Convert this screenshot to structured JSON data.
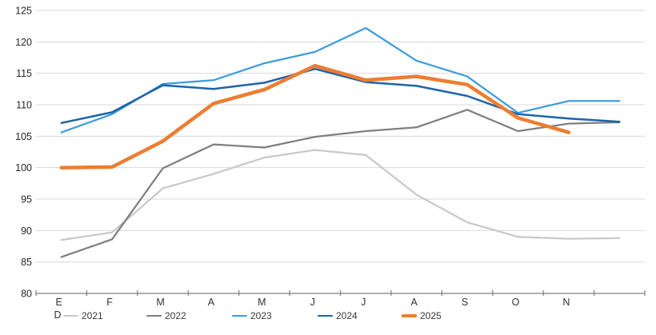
{
  "chart_data": {
    "type": "line",
    "title": "",
    "categories": [
      "E",
      "F",
      "M",
      "A",
      "M",
      "J",
      "J",
      "A",
      "S",
      "O",
      "N",
      "D"
    ],
    "december_label": "D",
    "y_ticks": [
      125,
      120,
      115,
      110,
      105,
      100,
      95,
      90,
      85,
      80
    ],
    "ylim": [
      80,
      125
    ],
    "grid": true,
    "legend_position": "bottom",
    "grid_color": "#d9d9d9",
    "axis_color": "#7f7f7f",
    "series": [
      {
        "name": "2021",
        "color": "#c9c9c9",
        "width": 2.25,
        "values": [
          88.5,
          89.7,
          96.7,
          99.0,
          101.6,
          102.8,
          102.0,
          95.7,
          91.3,
          89.0,
          88.7,
          88.8
        ]
      },
      {
        "name": "2022",
        "color": "#7f7f7f",
        "width": 2.25,
        "values": [
          85.8,
          88.6,
          99.9,
          103.7,
          103.2,
          104.9,
          105.8,
          106.4,
          109.2,
          105.8,
          107.0,
          107.2
        ]
      },
      {
        "name": "2023",
        "color": "#3e9cdd",
        "width": 2.25,
        "values": [
          105.6,
          108.5,
          113.3,
          113.9,
          116.6,
          118.4,
          122.2,
          117.0,
          114.5,
          108.7,
          110.6,
          110.6
        ]
      },
      {
        "name": "2024",
        "color": "#1f63ac",
        "width": 2.5,
        "values": [
          107.1,
          108.8,
          113.1,
          112.5,
          113.5,
          115.7,
          113.6,
          113.0,
          111.4,
          108.5,
          107.8,
          107.3
        ]
      },
      {
        "name": "2025",
        "color": "#ed7d31",
        "width": 4.5,
        "values": [
          100.0,
          100.1,
          104.2,
          110.2,
          112.4,
          116.2,
          113.9,
          114.5,
          113.2,
          107.9,
          105.6
        ]
      }
    ]
  }
}
